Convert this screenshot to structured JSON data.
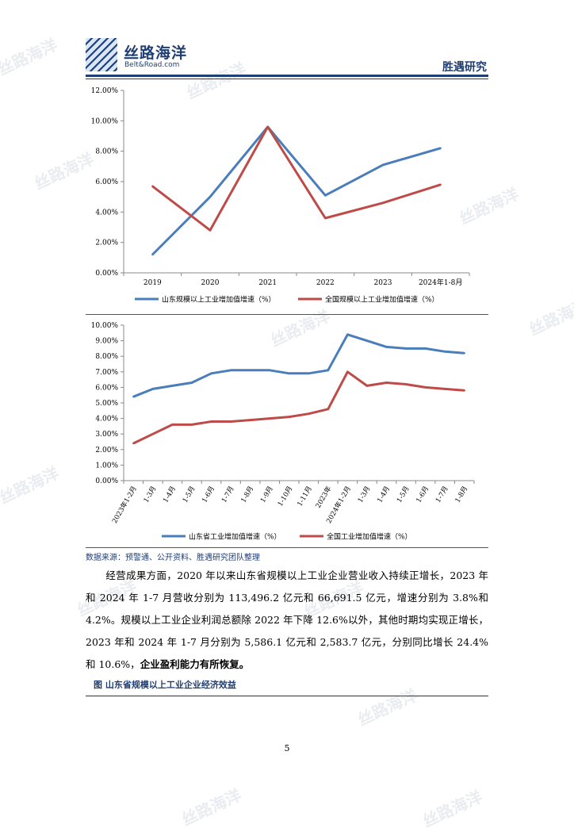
{
  "header": {
    "brand_cn": "丝路海洋",
    "brand_en": "Belt&Road.com",
    "section": "胜遇研究"
  },
  "watermark_text": "丝路海洋",
  "chart_data": [
    {
      "type": "line",
      "categories": [
        "2019",
        "2020",
        "2021",
        "2022",
        "2023",
        "2024年1-8月"
      ],
      "series": [
        {
          "name": "山东规模以上工业增加值增速（%）",
          "color": "#4a7ebb",
          "values": [
            1.2,
            5.0,
            9.6,
            5.1,
            7.1,
            8.2
          ]
        },
        {
          "name": "全国规模以上工业增加值增速（%）",
          "color": "#be4b48",
          "values": [
            5.7,
            2.8,
            9.6,
            3.6,
            4.6,
            5.8
          ]
        }
      ],
      "ylim": [
        0,
        12
      ],
      "ytick_step": 2,
      "yticks": [
        "0.00%",
        "2.00%",
        "4.00%",
        "6.00%",
        "8.00%",
        "10.00%",
        "12.00%"
      ],
      "legend": "bottom",
      "grid": false
    },
    {
      "type": "line",
      "categories": [
        "2023年1-2月",
        "1-3月",
        "1-4月",
        "1-5月",
        "1-6月",
        "1-7月",
        "1-8月",
        "1-9月",
        "1-10月",
        "1-11月",
        "2023年",
        "2024年1-2月",
        "1-3月",
        "1-4月",
        "1-5月",
        "1-6月",
        "1-7月",
        "1-8月"
      ],
      "series": [
        {
          "name": "山东省工业增加值增速（%）",
          "color": "#4a7ebb",
          "values": [
            5.4,
            5.9,
            6.1,
            6.3,
            6.9,
            7.1,
            7.1,
            7.1,
            6.9,
            6.9,
            7.1,
            9.4,
            9.0,
            8.6,
            8.5,
            8.5,
            8.3,
            8.2
          ]
        },
        {
          "name": "全国工业增加值增速（%）",
          "color": "#be4b48",
          "values": [
            2.4,
            3.0,
            3.6,
            3.6,
            3.8,
            3.8,
            3.9,
            4.0,
            4.1,
            4.3,
            4.6,
            7.0,
            6.1,
            6.3,
            6.2,
            6.0,
            5.9,
            5.8
          ]
        }
      ],
      "ylim": [
        0,
        10
      ],
      "ytick_step": 1,
      "yticks": [
        "0.00%",
        "1.00%",
        "2.00%",
        "3.00%",
        "4.00%",
        "5.00%",
        "6.00%",
        "7.00%",
        "8.00%",
        "9.00%",
        "10.00%"
      ],
      "legend": "bottom",
      "grid": false
    }
  ],
  "source": "数据来源：预警通、公开资料、胜遇研究团队整理",
  "paragraph": {
    "text": "经营成果方面，2020 年以来山东省规模以上工业企业营业收入持续正增长，2023 年和 2024 年 1-7 月营收分别为 113,496.2 亿元和 66,691.5 亿元，增速分别为 3.8%和 4.2%。规模以上工业企业利润总额除 2022 年下降 12.6%以外，其他时期均实现正增长，2023 年和 2024 年 1-7 月分别为 5,586.1 亿元和 2,583.7 亿元，分别同比增长 24.4%和 10.6%，",
    "bold": "企业盈利能力有所恢复。"
  },
  "figure_title": "图   山东省规模以上工业企业经济效益",
  "page_number": "5"
}
